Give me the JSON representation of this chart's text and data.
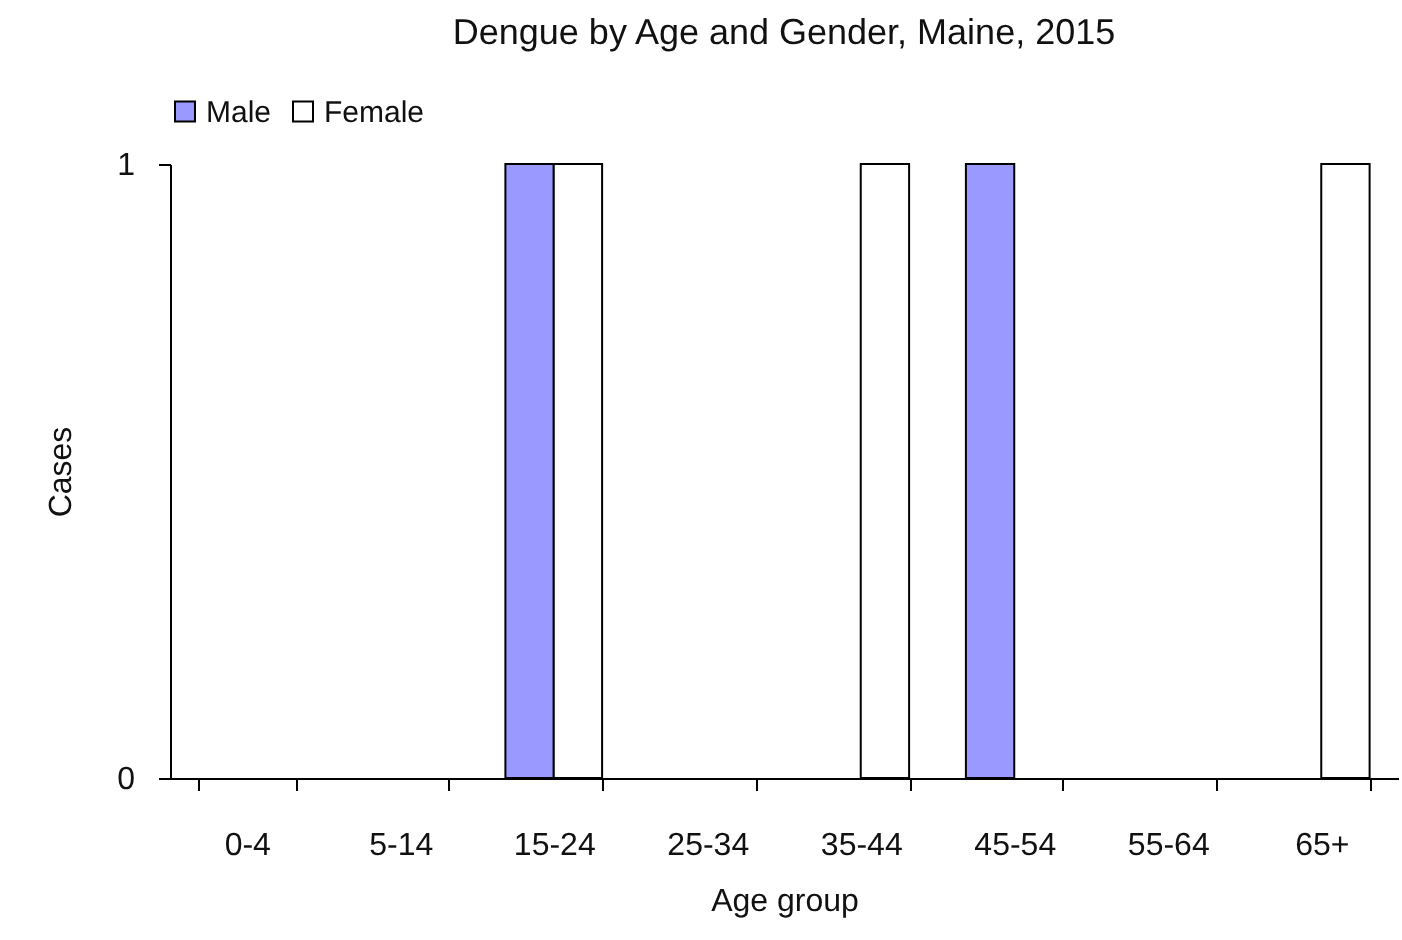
{
  "chart_data": {
    "type": "bar",
    "title": "Dengue by Age and Gender, Maine, 2015",
    "xlabel": "Age group",
    "ylabel": "Cases",
    "categories": [
      "0-4",
      "5-14",
      "15-24",
      "25-34",
      "35-44",
      "45-54",
      "55-64",
      "65+"
    ],
    "series": [
      {
        "name": "Male",
        "color": "#9999ff",
        "values": [
          0,
          0,
          1,
          0,
          0,
          1,
          0,
          0
        ]
      },
      {
        "name": "Female",
        "color": "#ffffff",
        "values": [
          0,
          0,
          1,
          0,
          1,
          0,
          0,
          1
        ]
      }
    ],
    "ylim": [
      0,
      1
    ],
    "yticks": [
      0,
      1
    ],
    "legend": "top left"
  }
}
